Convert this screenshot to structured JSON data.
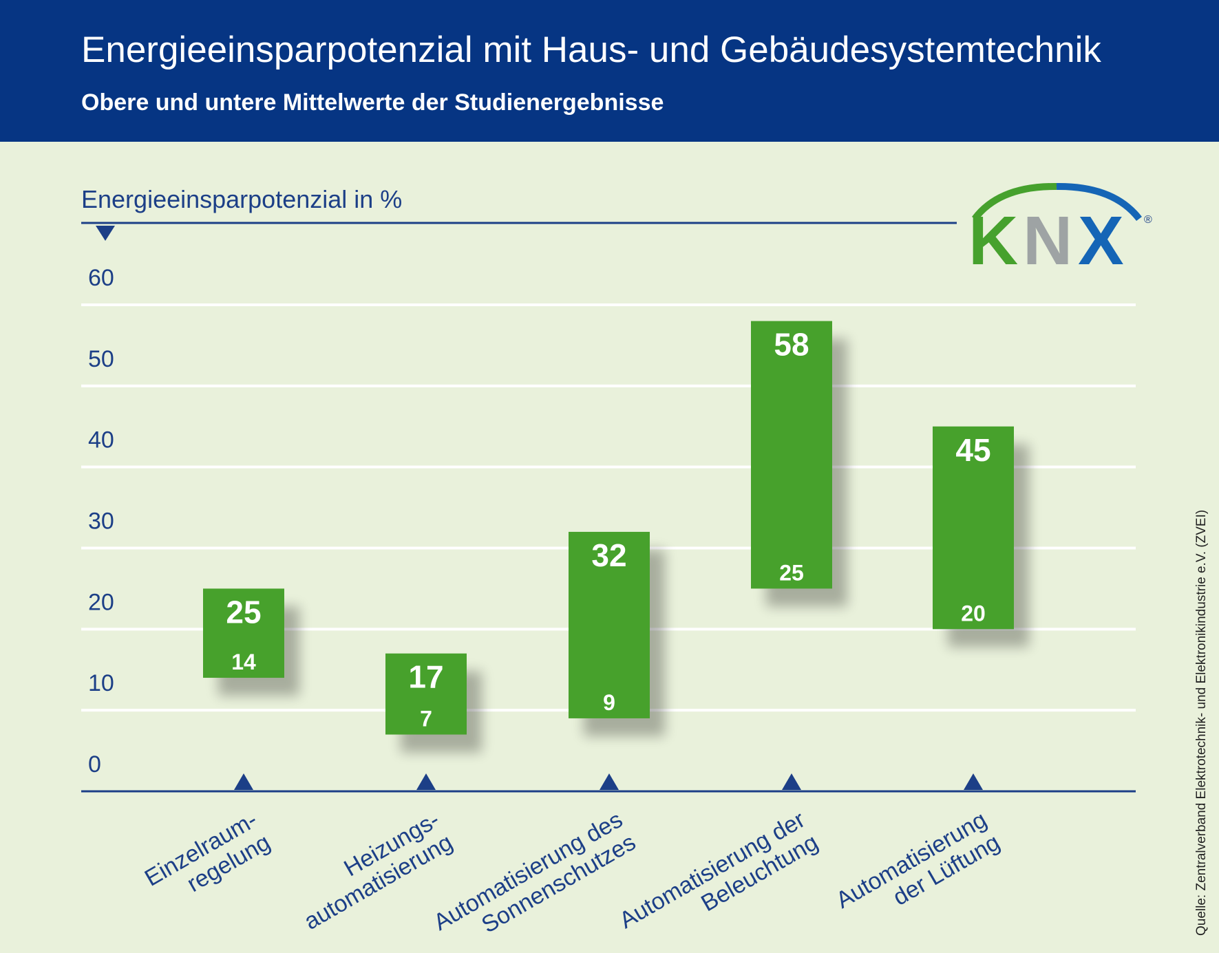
{
  "header": {
    "title": "Energieeinsparpotenzial mit Haus- und Gebäudesystemtechnik",
    "subtitle": "Obere und untere Mittelwerte der Studienergebnisse"
  },
  "logo": {
    "text": "KNX",
    "registered": "®",
    "colors": {
      "K": "#46a12d",
      "N": "#9ea3a4",
      "X": "#1565b6",
      "arc_left": "#46a12d",
      "arc_right": "#1565b6"
    }
  },
  "source": "Quelle: Zentralverband Elektrotechnik- und Elektronikindustrie e.V. (ZVEI)",
  "colors": {
    "header_bg": "#063583",
    "background": "#e9f1db",
    "bar": "#47a12c",
    "axis": "#1c3f87",
    "grid": "#ffffff"
  },
  "chart_data": {
    "type": "bar",
    "title": "Energieeinsparpotenzial mit Haus- und Gebäudesystemtechnik",
    "subtitle": "Obere und untere Mittelwerte der Studienergebnisse",
    "ylabel": "Energieeinsparpotenzial in %",
    "ylim": [
      0,
      60
    ],
    "yticks": [
      "0",
      "10",
      "20",
      "30",
      "40",
      "50",
      "60"
    ],
    "grid": true,
    "categories": [
      [
        "Einzelraum-",
        "regelung"
      ],
      [
        "Heizungs-",
        "automatisierung"
      ],
      [
        "Automatisierung des",
        "Sonnenschutzes"
      ],
      [
        "Automatisierung der",
        "Beleuchtung"
      ],
      [
        "Automatisierung",
        "der Lüftung"
      ]
    ],
    "series": [
      {
        "name": "",
        "low": [
          14,
          7,
          9,
          25,
          20
        ],
        "high": [
          25,
          17,
          32,
          58,
          45
        ]
      }
    ],
    "low_labels": [
      "14",
      "7",
      "9",
      "25",
      "20"
    ],
    "high_labels": [
      "25",
      "17",
      "32",
      "58",
      "45"
    ]
  }
}
